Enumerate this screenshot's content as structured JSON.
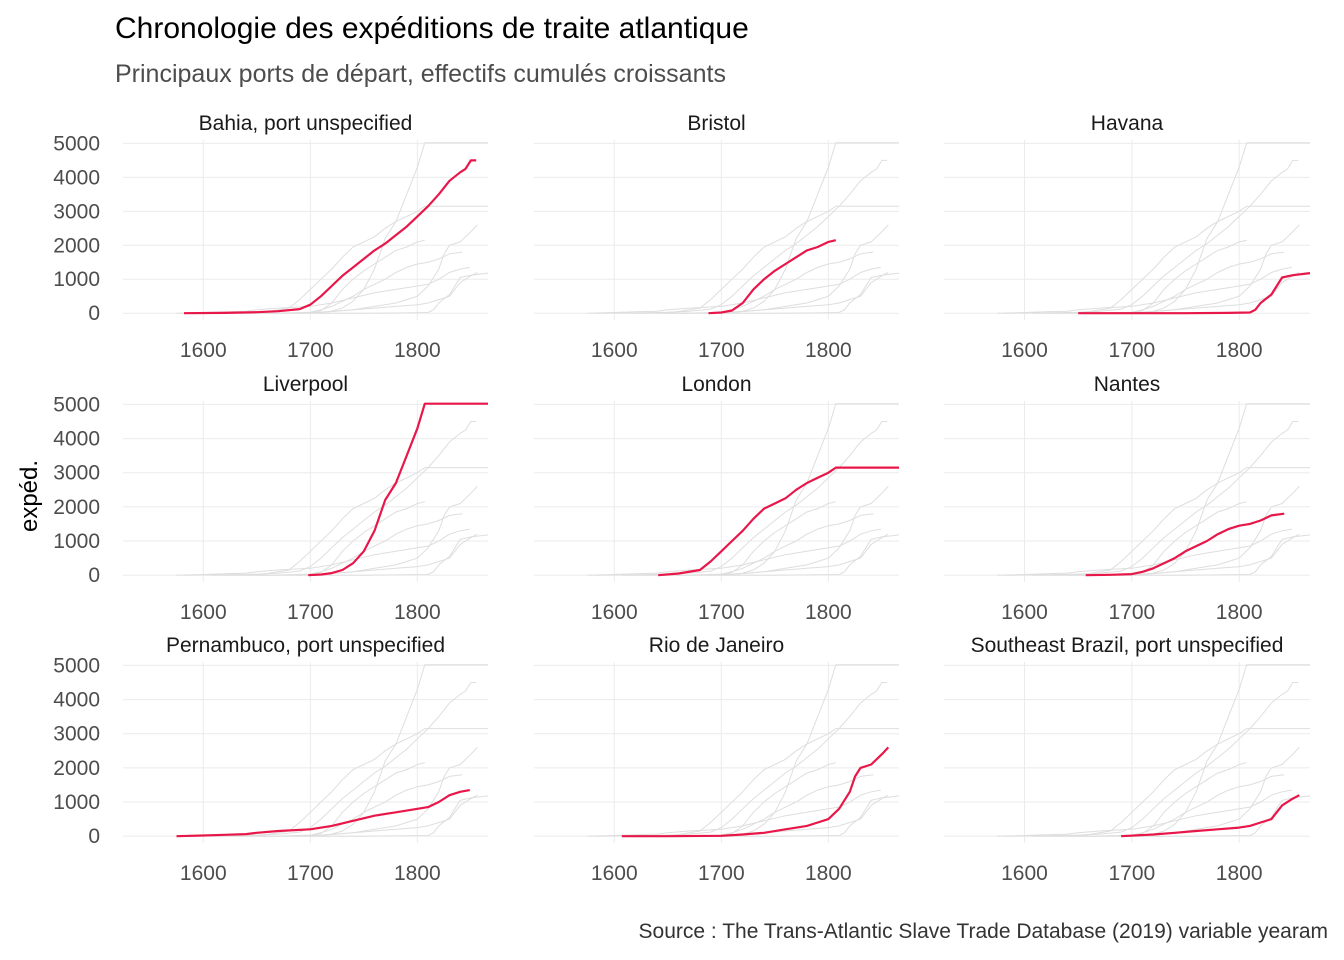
{
  "chart_data": {
    "type": "line",
    "title": "Chronologie des expéditions de traite atlantique",
    "subtitle": "Principaux ports de départ, effectifs cumulés croissants",
    "ylabel": "expéd.",
    "xlabel": "",
    "caption": "Source : The Trans-Atlantic Slave Trade Database (2019) variable yearam",
    "xlim": [
      1525,
      1866
    ],
    "ylim": [
      -200,
      5100
    ],
    "xticks": [
      1600,
      1700,
      1800
    ],
    "yticks": [
      0,
      1000,
      2000,
      3000,
      4000,
      5000
    ],
    "grid": true,
    "highlight_color": "#e8174a",
    "background_line_color": "#dedede",
    "panels": [
      {
        "name": "Bahia, port unspecified",
        "x": [
          1582,
          1620,
          1650,
          1670,
          1690,
          1700,
          1710,
          1720,
          1730,
          1740,
          1750,
          1760,
          1770,
          1780,
          1790,
          1800,
          1810,
          1820,
          1830,
          1840,
          1845,
          1850,
          1855
        ],
        "y": [
          0,
          10,
          30,
          60,
          120,
          250,
          500,
          800,
          1100,
          1350,
          1600,
          1850,
          2050,
          2300,
          2550,
          2850,
          3150,
          3500,
          3900,
          4150,
          4250,
          4500,
          4500
        ]
      },
      {
        "name": "Bristol",
        "x": [
          1688,
          1700,
          1710,
          1720,
          1730,
          1740,
          1750,
          1760,
          1770,
          1780,
          1790,
          1800,
          1807
        ],
        "y": [
          0,
          20,
          80,
          300,
          700,
          1000,
          1250,
          1450,
          1650,
          1850,
          1950,
          2100,
          2150
        ]
      },
      {
        "name": "Havana",
        "x": [
          1650,
          1700,
          1750,
          1790,
          1810,
          1815,
          1820,
          1830,
          1840,
          1850,
          1866
        ],
        "y": [
          0,
          0,
          0,
          10,
          20,
          100,
          300,
          550,
          1050,
          1120,
          1180
        ]
      },
      {
        "name": "Liverpool",
        "x": [
          1698,
          1710,
          1720,
          1730,
          1740,
          1750,
          1760,
          1770,
          1780,
          1790,
          1800,
          1807,
          1866
        ],
        "y": [
          0,
          20,
          60,
          150,
          350,
          700,
          1300,
          2200,
          2700,
          3500,
          4300,
          5020,
          5020
        ]
      },
      {
        "name": "London",
        "x": [
          1641,
          1660,
          1680,
          1690,
          1700,
          1710,
          1720,
          1730,
          1740,
          1750,
          1760,
          1770,
          1780,
          1790,
          1800,
          1807,
          1866
        ],
        "y": [
          0,
          50,
          150,
          400,
          700,
          1000,
          1300,
          1650,
          1950,
          2100,
          2250,
          2500,
          2700,
          2850,
          3000,
          3150,
          3150
        ]
      },
      {
        "name": "Nantes",
        "x": [
          1657,
          1680,
          1700,
          1710,
          1720,
          1730,
          1740,
          1750,
          1760,
          1770,
          1780,
          1790,
          1800,
          1810,
          1820,
          1830,
          1842
        ],
        "y": [
          0,
          10,
          30,
          100,
          200,
          350,
          500,
          700,
          850,
          1000,
          1200,
          1350,
          1450,
          1500,
          1600,
          1750,
          1800
        ]
      },
      {
        "name": "Pernambuco, port unspecified",
        "x": [
          1575,
          1600,
          1620,
          1640,
          1650,
          1670,
          1700,
          1720,
          1740,
          1760,
          1780,
          1800,
          1810,
          1820,
          1830,
          1840,
          1849
        ],
        "y": [
          0,
          20,
          40,
          60,
          100,
          150,
          200,
          300,
          450,
          600,
          700,
          800,
          850,
          1000,
          1200,
          1300,
          1350
        ]
      },
      {
        "name": "Rio de Janeiro",
        "x": [
          1607,
          1650,
          1700,
          1720,
          1740,
          1760,
          1780,
          1790,
          1800,
          1810,
          1820,
          1825,
          1830,
          1840,
          1850,
          1856
        ],
        "y": [
          0,
          0,
          10,
          50,
          100,
          200,
          300,
          400,
          500,
          800,
          1300,
          1750,
          2000,
          2100,
          2400,
          2600
        ]
      },
      {
        "name": "Southeast Brazil, port unspecified",
        "x": [
          1690,
          1720,
          1740,
          1760,
          1780,
          1800,
          1810,
          1820,
          1830,
          1840,
          1850,
          1856
        ],
        "y": [
          0,
          50,
          100,
          150,
          200,
          250,
          300,
          400,
          500,
          900,
          1100,
          1200
        ]
      }
    ]
  }
}
